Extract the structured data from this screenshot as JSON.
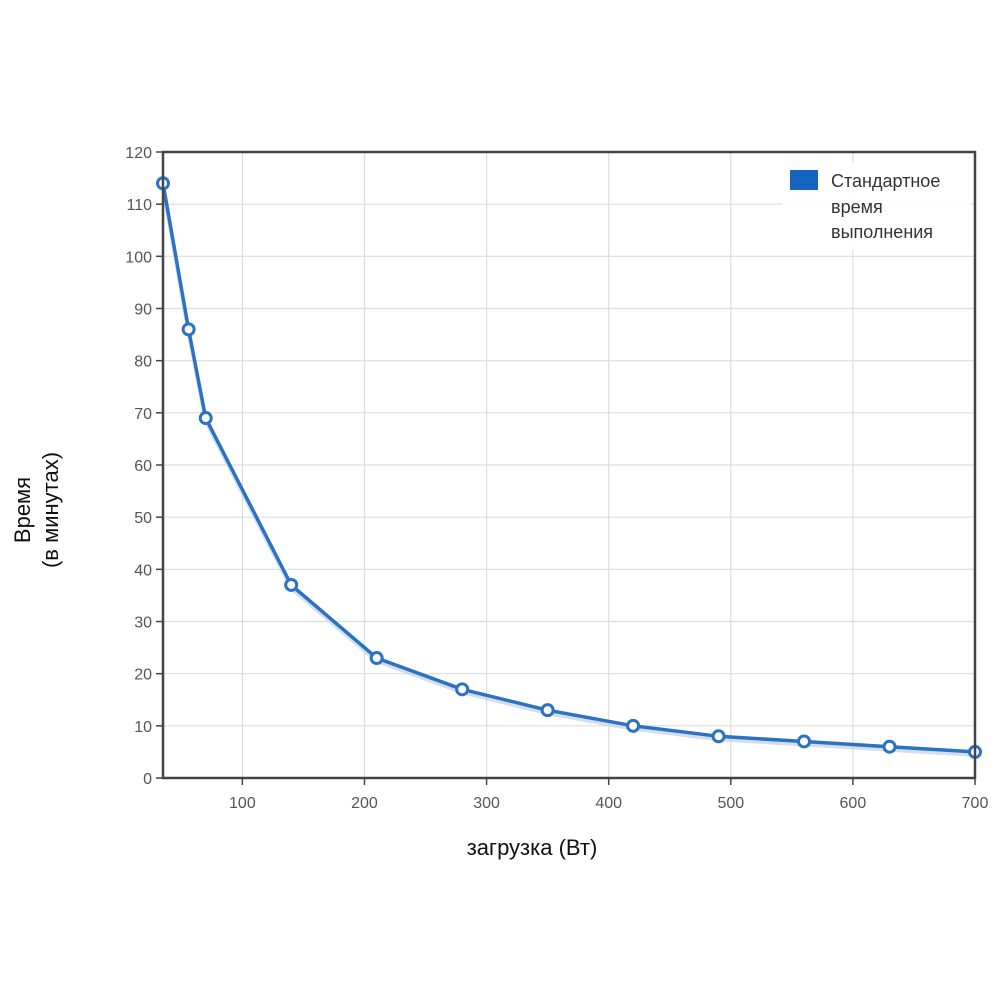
{
  "chart_data": {
    "type": "line",
    "x": [
      35,
      56,
      70,
      140,
      210,
      280,
      350,
      420,
      490,
      560,
      630,
      700
    ],
    "series": [
      {
        "name": "Стандартное время выполнения",
        "legend_lines": [
          "Стандартное",
          "время",
          "выполнения"
        ],
        "values": [
          114,
          86,
          69,
          37,
          23,
          17,
          13,
          10,
          8,
          7,
          6,
          5
        ],
        "color": "#2b72c2"
      }
    ],
    "xlabel": "загрузка (Вт)",
    "ylabel_lines": [
      "Время",
      "(в минутах)"
    ],
    "xlim": [
      35,
      700
    ],
    "ylim": [
      0,
      120
    ],
    "xticks": [
      100,
      200,
      300,
      400,
      500,
      600,
      700
    ],
    "yticks": [
      0,
      10,
      20,
      30,
      40,
      50,
      60,
      70,
      80,
      90,
      100,
      110,
      120
    ],
    "grid": true,
    "legend_position": "top-right"
  }
}
